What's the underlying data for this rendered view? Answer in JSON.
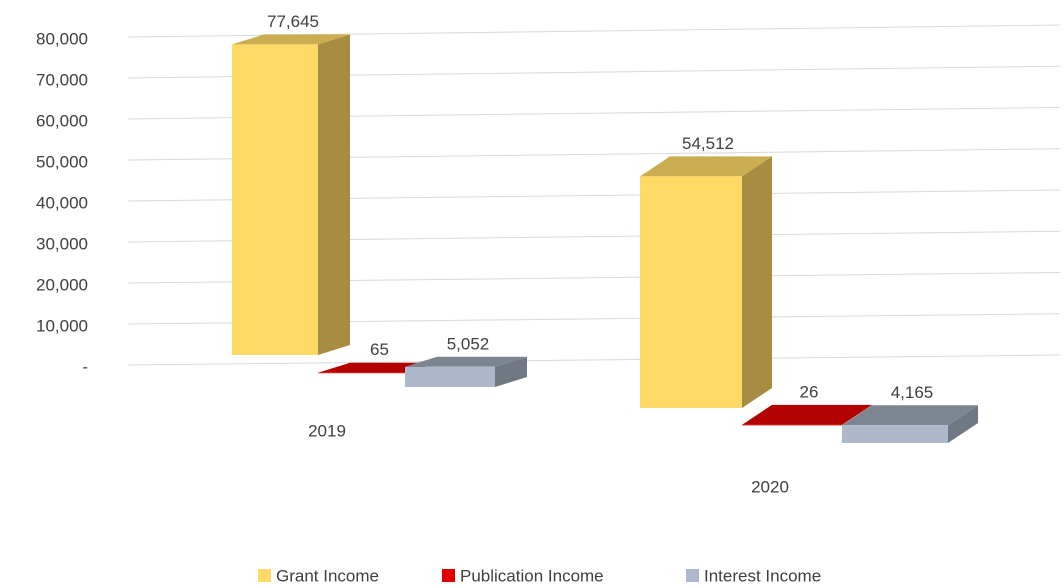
{
  "chart_data": {
    "type": "bar3d",
    "categories": [
      "2019",
      "2020"
    ],
    "series": [
      {
        "name": "Grant Income",
        "color": "#FFD966",
        "values": [
          77645,
          54512
        ],
        "value_labels": [
          "77,645",
          "54,512"
        ]
      },
      {
        "name": "Publication Income",
        "color": "#E00000",
        "values": [
          65,
          26
        ],
        "value_labels": [
          "65",
          "26"
        ]
      },
      {
        "name": "Interest Income",
        "color": "#ADB9CA",
        "values": [
          5052,
          4165
        ],
        "value_labels": [
          "5,052",
          "4,165"
        ]
      }
    ],
    "ylim": [
      0,
      80000
    ],
    "yticks": [
      {
        "value": 0,
        "label": "-"
      },
      {
        "value": 10000,
        "label": "10,000"
      },
      {
        "value": 20000,
        "label": "20,000"
      },
      {
        "value": 30000,
        "label": "30,000"
      },
      {
        "value": 40000,
        "label": "40,000"
      },
      {
        "value": 50000,
        "label": "50,000"
      },
      {
        "value": 60000,
        "label": "60,000"
      },
      {
        "value": 70000,
        "label": "70,000"
      },
      {
        "value": 80000,
        "label": "80,000"
      }
    ],
    "grid": true,
    "legend": "bottom"
  }
}
